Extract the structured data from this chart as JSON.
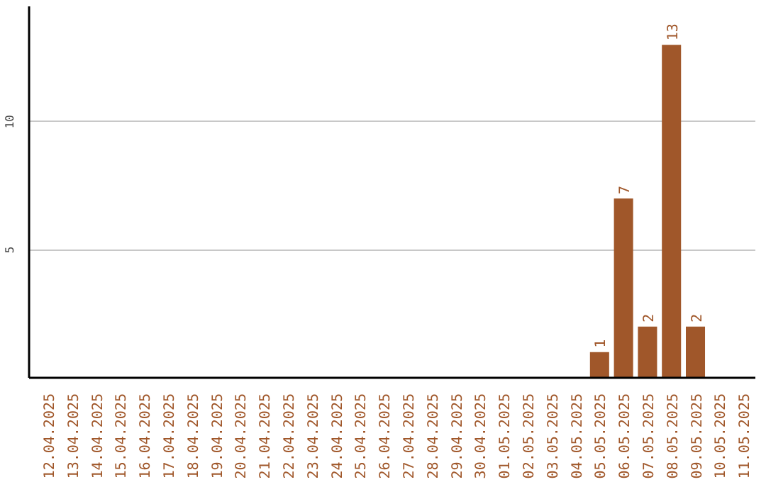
{
  "chart_data": {
    "type": "bar",
    "categories": [
      "12.04.2025",
      "13.04.2025",
      "14.04.2025",
      "15.04.2025",
      "16.04.2025",
      "17.04.2025",
      "18.04.2025",
      "19.04.2025",
      "20.04.2025",
      "21.04.2025",
      "22.04.2025",
      "23.04.2025",
      "24.04.2025",
      "25.04.2025",
      "26.04.2025",
      "27.04.2025",
      "28.04.2025",
      "29.04.2025",
      "30.04.2025",
      "01.05.2025",
      "02.05.2025",
      "03.05.2025",
      "04.05.2025",
      "05.05.2025",
      "06.05.2025",
      "07.05.2025",
      "08.05.2025",
      "09.05.2025",
      "10.05.2025",
      "11.05.2025"
    ],
    "values": [
      0,
      0,
      0,
      0,
      0,
      0,
      0,
      0,
      0,
      0,
      0,
      0,
      0,
      0,
      0,
      0,
      0,
      0,
      0,
      0,
      0,
      0,
      0,
      1,
      7,
      2,
      13,
      2,
      0,
      0
    ],
    "value_labels": [
      null,
      null,
      null,
      null,
      null,
      null,
      null,
      null,
      null,
      null,
      null,
      null,
      null,
      null,
      null,
      null,
      null,
      null,
      null,
      null,
      null,
      null,
      null,
      "1",
      "7",
      "2",
      "13",
      "2",
      null,
      null
    ],
    "color": "#a0572a",
    "ylim": [
      0,
      14.5
    ],
    "yticks": [
      5,
      10
    ],
    "grid": "y"
  }
}
